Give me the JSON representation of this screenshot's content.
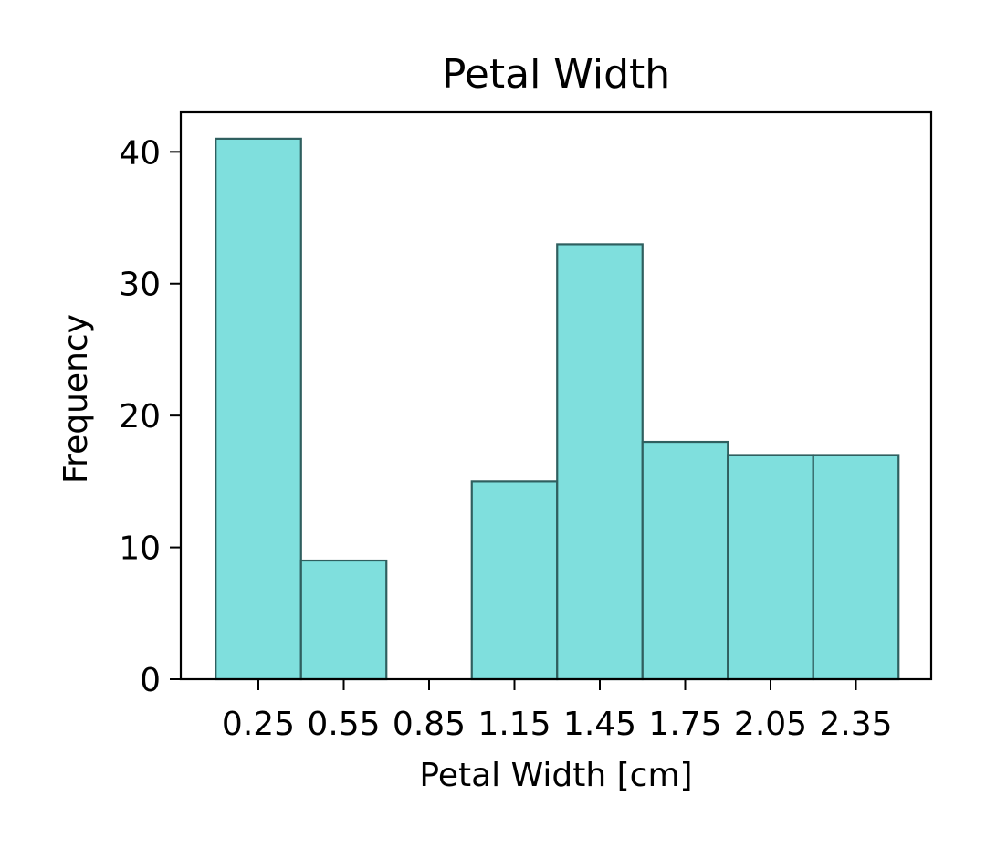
{
  "chart_data": {
    "type": "bar",
    "title": "Petal Width",
    "xlabel": "Petal Width [cm]",
    "ylabel": "Frequency",
    "categories": [
      "0.25",
      "0.55",
      "0.85",
      "1.15",
      "1.45",
      "1.75",
      "2.05",
      "2.35"
    ],
    "values": [
      41,
      9,
      0,
      15,
      33,
      18,
      17,
      17
    ],
    "ylim": [
      0,
      43
    ],
    "yticks": [
      0,
      10,
      20,
      30,
      40
    ],
    "grid": false,
    "bar_color": "#7fdfdd",
    "bar_edge_color": "#2f5f5f"
  }
}
